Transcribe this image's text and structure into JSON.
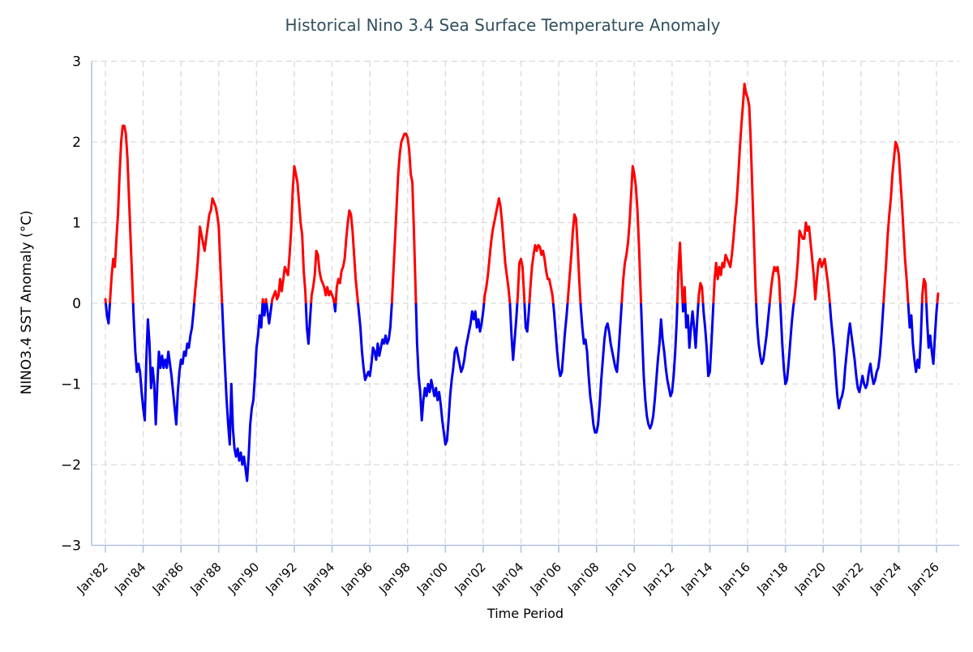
{
  "chart_data": {
    "type": "line",
    "title": "Historical Nino 3.4 Sea Surface Temperature Anomaly",
    "xlabel": "Time Period",
    "ylabel": "NINO3.4 SST Anomaly (°C)",
    "ylim": [
      -3,
      3
    ],
    "y_ticks": [
      3,
      2,
      1,
      0,
      -1,
      -2,
      -3
    ],
    "grid": true,
    "legend_position": "none",
    "x_start": "Jan 1982",
    "frequency": "monthly",
    "x_tick_every_months": 24,
    "x_tick_labels": [
      "Jan'82",
      "Jan'84",
      "Jan'86",
      "Jan'88",
      "Jan'90",
      "Jan'92",
      "Jan'94",
      "Jan'96",
      "Jan'98",
      "Jan'00",
      "Jan'02",
      "Jan'04",
      "Jan'06",
      "Jan'08",
      "Jan'10",
      "Jan'12",
      "Jan'14",
      "Jan'16",
      "Jan'18",
      "Jan'20",
      "Jan'22",
      "Jan'24",
      "Jan'26"
    ],
    "colors": {
      "positive": "#ff0000",
      "negative": "#0000ee",
      "grid": "#d9d9d9",
      "axis": "#b4c4e0",
      "title": "#31505f",
      "tick_text": "#000000"
    },
    "series": [
      {
        "name": "NINO3.4 SST Anomaly",
        "values": [
          0.05,
          -0.15,
          -0.25,
          0.05,
          0.35,
          0.55,
          0.45,
          0.8,
          1.1,
          1.6,
          2.0,
          2.2,
          2.2,
          2.1,
          1.8,
          1.3,
          0.8,
          0.3,
          -0.2,
          -0.6,
          -0.85,
          -0.75,
          -0.85,
          -1.1,
          -1.3,
          -1.45,
          -0.7,
          -0.2,
          -0.5,
          -1.05,
          -0.8,
          -1.0,
          -1.5,
          -1.0,
          -0.6,
          -0.8,
          -0.65,
          -0.8,
          -0.7,
          -0.8,
          -0.6,
          -0.75,
          -0.9,
          -1.1,
          -1.3,
          -1.5,
          -1.1,
          -0.85,
          -0.7,
          -0.75,
          -0.6,
          -0.65,
          -0.5,
          -0.55,
          -0.4,
          -0.3,
          -0.1,
          0.15,
          0.35,
          0.6,
          0.95,
          0.85,
          0.75,
          0.65,
          0.8,
          0.95,
          1.1,
          1.15,
          1.3,
          1.25,
          1.2,
          1.1,
          0.95,
          0.5,
          0.05,
          -0.4,
          -0.8,
          -1.2,
          -1.5,
          -1.75,
          -1.0,
          -1.55,
          -1.8,
          -1.9,
          -1.8,
          -1.95,
          -1.85,
          -2.0,
          -1.9,
          -2.05,
          -2.2,
          -1.9,
          -1.5,
          -1.3,
          -1.2,
          -0.9,
          -0.55,
          -0.4,
          -0.15,
          -0.3,
          0.05,
          -0.15,
          0.05,
          -0.1,
          -0.25,
          -0.1,
          0.05,
          0.1,
          0.15,
          0.05,
          0.1,
          0.3,
          0.15,
          0.3,
          0.45,
          0.4,
          0.35,
          0.6,
          0.9,
          1.4,
          1.7,
          1.6,
          1.5,
          1.25,
          1.0,
          0.85,
          0.4,
          0.15,
          -0.3,
          -0.5,
          -0.2,
          0.1,
          0.2,
          0.35,
          0.65,
          0.6,
          0.4,
          0.3,
          0.25,
          0.2,
          0.1,
          0.2,
          0.1,
          0.15,
          0.1,
          0.05,
          -0.1,
          0.2,
          0.3,
          0.25,
          0.4,
          0.45,
          0.55,
          0.8,
          1.0,
          1.15,
          1.1,
          0.9,
          0.6,
          0.3,
          0.1,
          -0.1,
          -0.3,
          -0.6,
          -0.8,
          -0.95,
          -0.9,
          -0.85,
          -0.9,
          -0.75,
          -0.55,
          -0.6,
          -0.7,
          -0.5,
          -0.65,
          -0.55,
          -0.45,
          -0.5,
          -0.4,
          -0.5,
          -0.45,
          -0.3,
          0.0,
          0.4,
          0.8,
          1.2,
          1.6,
          1.85,
          2.0,
          2.05,
          2.1,
          2.1,
          2.05,
          1.9,
          1.6,
          1.5,
          0.9,
          0.2,
          -0.5,
          -0.9,
          -1.1,
          -1.45,
          -1.2,
          -1.05,
          -1.15,
          -1.0,
          -1.1,
          -0.95,
          -1.05,
          -1.15,
          -1.05,
          -1.2,
          -1.1,
          -1.25,
          -1.45,
          -1.6,
          -1.75,
          -1.7,
          -1.45,
          -1.15,
          -0.95,
          -0.8,
          -0.6,
          -0.55,
          -0.65,
          -0.75,
          -0.85,
          -0.8,
          -0.7,
          -0.55,
          -0.45,
          -0.35,
          -0.25,
          -0.1,
          -0.2,
          -0.1,
          -0.3,
          -0.2,
          -0.35,
          -0.25,
          -0.1,
          0.1,
          0.2,
          0.35,
          0.55,
          0.75,
          0.9,
          1.0,
          1.1,
          1.2,
          1.3,
          1.2,
          1.0,
          0.75,
          0.5,
          0.35,
          0.2,
          0.0,
          -0.4,
          -0.7,
          -0.45,
          -0.2,
          0.1,
          0.5,
          0.55,
          0.45,
          0.1,
          -0.3,
          -0.35,
          -0.1,
          0.2,
          0.45,
          0.6,
          0.72,
          0.65,
          0.72,
          0.7,
          0.6,
          0.65,
          0.55,
          0.4,
          0.3,
          0.3,
          0.2,
          0.1,
          -0.1,
          -0.35,
          -0.6,
          -0.8,
          -0.9,
          -0.85,
          -0.6,
          -0.35,
          -0.15,
          0.1,
          0.35,
          0.6,
          0.9,
          1.1,
          1.05,
          0.7,
          0.3,
          -0.05,
          -0.3,
          -0.5,
          -0.45,
          -0.6,
          -0.9,
          -1.15,
          -1.3,
          -1.5,
          -1.6,
          -1.6,
          -1.5,
          -1.25,
          -0.95,
          -0.7,
          -0.45,
          -0.3,
          -0.25,
          -0.35,
          -0.5,
          -0.6,
          -0.7,
          -0.8,
          -0.85,
          -0.6,
          -0.3,
          0.0,
          0.3,
          0.5,
          0.6,
          0.75,
          1.0,
          1.35,
          1.7,
          1.6,
          1.45,
          1.15,
          0.7,
          0.15,
          -0.4,
          -0.9,
          -1.2,
          -1.4,
          -1.5,
          -1.55,
          -1.5,
          -1.4,
          -1.2,
          -0.95,
          -0.7,
          -0.5,
          -0.2,
          -0.45,
          -0.6,
          -0.8,
          -0.95,
          -1.05,
          -1.15,
          -1.1,
          -0.9,
          -0.6,
          -0.2,
          0.4,
          0.75,
          0.3,
          -0.1,
          0.2,
          -0.3,
          -0.15,
          -0.55,
          -0.3,
          -0.1,
          -0.3,
          -0.55,
          -0.2,
          0.1,
          0.25,
          0.2,
          -0.1,
          -0.3,
          -0.55,
          -0.9,
          -0.85,
          -0.5,
          -0.1,
          0.3,
          0.5,
          0.3,
          0.45,
          0.35,
          0.5,
          0.45,
          0.6,
          0.55,
          0.5,
          0.45,
          0.6,
          0.8,
          1.05,
          1.25,
          1.55,
          1.9,
          2.2,
          2.45,
          2.72,
          2.6,
          2.55,
          2.45,
          2.0,
          1.4,
          0.8,
          0.2,
          -0.25,
          -0.5,
          -0.65,
          -0.75,
          -0.7,
          -0.55,
          -0.4,
          -0.2,
          0.0,
          0.2,
          0.35,
          0.45,
          0.4,
          0.45,
          0.3,
          -0.1,
          -0.5,
          -0.8,
          -1.0,
          -0.95,
          -0.75,
          -0.5,
          -0.25,
          -0.05,
          0.1,
          0.3,
          0.55,
          0.9,
          0.85,
          0.8,
          0.8,
          1.0,
          0.9,
          0.95,
          0.75,
          0.55,
          0.35,
          0.05,
          0.3,
          0.5,
          0.55,
          0.45,
          0.5,
          0.55,
          0.4,
          0.25,
          0.05,
          -0.2,
          -0.4,
          -0.6,
          -0.9,
          -1.15,
          -1.3,
          -1.2,
          -1.15,
          -1.05,
          -0.8,
          -0.6,
          -0.4,
          -0.25,
          -0.4,
          -0.55,
          -0.7,
          -0.9,
          -1.05,
          -1.1,
          -1.0,
          -0.9,
          -1.0,
          -1.05,
          -1.0,
          -0.85,
          -0.75,
          -0.9,
          -1.0,
          -0.95,
          -0.85,
          -0.8,
          -0.65,
          -0.4,
          -0.1,
          0.2,
          0.5,
          0.85,
          1.1,
          1.3,
          1.6,
          1.8,
          2.0,
          1.95,
          1.85,
          1.55,
          1.25,
          0.9,
          0.55,
          0.3,
          0.0,
          -0.3,
          -0.15,
          -0.5,
          -0.7,
          -0.85,
          -0.7,
          -0.8,
          -0.45,
          0.1,
          0.3,
          0.25,
          -0.2,
          -0.55,
          -0.4,
          -0.6,
          -0.75,
          -0.4,
          -0.1,
          0.12
        ]
      }
    ]
  }
}
